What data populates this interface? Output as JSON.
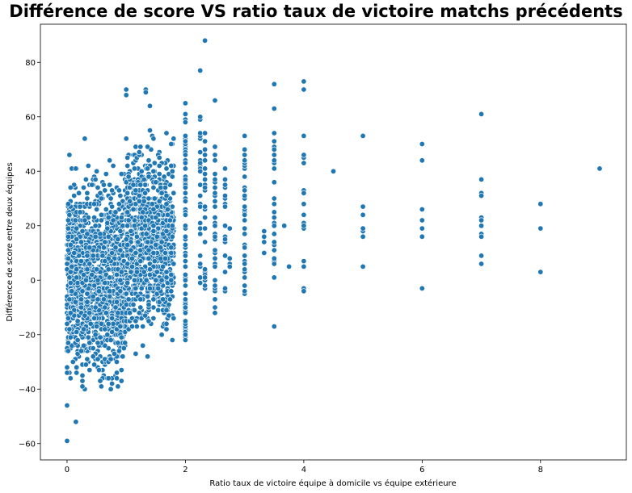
{
  "chart_data": {
    "type": "scatter",
    "title": "Différence de score VS ratio taux de victoire matchs précédents",
    "xlabel": "Ratio taux de victoire équipe à domicile vs équipe extérieure",
    "ylabel": "Différence de score entre deux équipes",
    "xlim": [
      -0.45,
      9.45
    ],
    "ylim": [
      -66,
      94
    ],
    "xticks": [
      0,
      2,
      4,
      6,
      8
    ],
    "yticks": [
      -60,
      -40,
      -20,
      0,
      20,
      40,
      60,
      80
    ],
    "marker_color": "#1f77b4",
    "marker_edge": "#ffffff",
    "grid": false,
    "notable_points": [
      {
        "x": 0,
        "y": -59
      },
      {
        "x": 0,
        "y": -46
      },
      {
        "x": 0.15,
        "y": -52
      },
      {
        "x": 0.15,
        "y": 41
      },
      {
        "x": 0.3,
        "y": 52
      },
      {
        "x": 1,
        "y": 70
      },
      {
        "x": 1,
        "y": 68
      },
      {
        "x": 1.33,
        "y": 70
      },
      {
        "x": 1.33,
        "y": 69
      },
      {
        "x": 1.4,
        "y": 64
      },
      {
        "x": 2,
        "y": 65
      },
      {
        "x": 2.25,
        "y": 77
      },
      {
        "x": 2.33,
        "y": 88
      },
      {
        "x": 2.5,
        "y": 66
      },
      {
        "x": 3.5,
        "y": 72
      },
      {
        "x": 3.5,
        "y": 63
      },
      {
        "x": 3.5,
        "y": -17
      },
      {
        "x": 4,
        "y": 73
      },
      {
        "x": 4,
        "y": 70
      },
      {
        "x": 4,
        "y": 53
      },
      {
        "x": 4.5,
        "y": 40
      },
      {
        "x": 5,
        "y": 53
      },
      {
        "x": 5,
        "y": 27
      },
      {
        "x": 5,
        "y": 5
      },
      {
        "x": 6,
        "y": 50
      },
      {
        "x": 6,
        "y": 44
      },
      {
        "x": 6,
        "y": -3
      },
      {
        "x": 7,
        "y": 61
      },
      {
        "x": 7,
        "y": 37
      },
      {
        "x": 7,
        "y": 6
      },
      {
        "x": 8,
        "y": 28
      },
      {
        "x": 8,
        "y": 19
      },
      {
        "x": 8,
        "y": 3
      },
      {
        "x": 9,
        "y": 41
      }
    ],
    "columns": [
      {
        "x": 2.0,
        "ymin": -22,
        "ymax": 62,
        "step": 1,
        "n": 70
      },
      {
        "x": 2.25,
        "ymin": -3,
        "ymax": 60,
        "step": 1,
        "n": 30
      },
      {
        "x": 2.33,
        "ymin": -6,
        "ymax": 58,
        "step": 1,
        "n": 26
      },
      {
        "x": 2.5,
        "ymin": -14,
        "ymax": 50,
        "step": 1,
        "n": 34
      },
      {
        "x": 2.67,
        "ymin": -6,
        "ymax": 50,
        "step": 1,
        "n": 20
      },
      {
        "x": 2.75,
        "ymin": 5,
        "ymax": 20,
        "step": 1,
        "n": 6
      },
      {
        "x": 3.0,
        "ymin": -6,
        "ymax": 56,
        "step": 1,
        "n": 46
      },
      {
        "x": 3.33,
        "ymin": 7,
        "ymax": 20,
        "step": 1,
        "n": 4
      },
      {
        "x": 3.5,
        "ymin": -7,
        "ymax": 54,
        "step": 1,
        "n": 26
      },
      {
        "x": 3.67,
        "ymin": 20,
        "ymax": 20,
        "step": 1,
        "n": 1
      },
      {
        "x": 3.75,
        "ymin": 5,
        "ymax": 5,
        "step": 1,
        "n": 1
      },
      {
        "x": 4.0,
        "ymin": -5,
        "ymax": 47,
        "step": 1,
        "n": 16
      },
      {
        "x": 5.0,
        "ymin": 15,
        "ymax": 24,
        "step": 1,
        "n": 6
      },
      {
        "x": 6.0,
        "ymin": 12,
        "ymax": 33,
        "step": 1,
        "n": 8
      },
      {
        "x": 7.0,
        "ymin": 5,
        "ymax": 33,
        "step": 1,
        "n": 8
      }
    ],
    "dense_regions": [
      {
        "xmin": 0,
        "xmax": 1.0,
        "ymin": -40,
        "ymax": 48,
        "center_y": 0,
        "n": 1400
      },
      {
        "xmin": 1.0,
        "xmax": 1.8,
        "ymin": -30,
        "ymax": 55,
        "center_y": 15,
        "n": 900
      }
    ]
  }
}
